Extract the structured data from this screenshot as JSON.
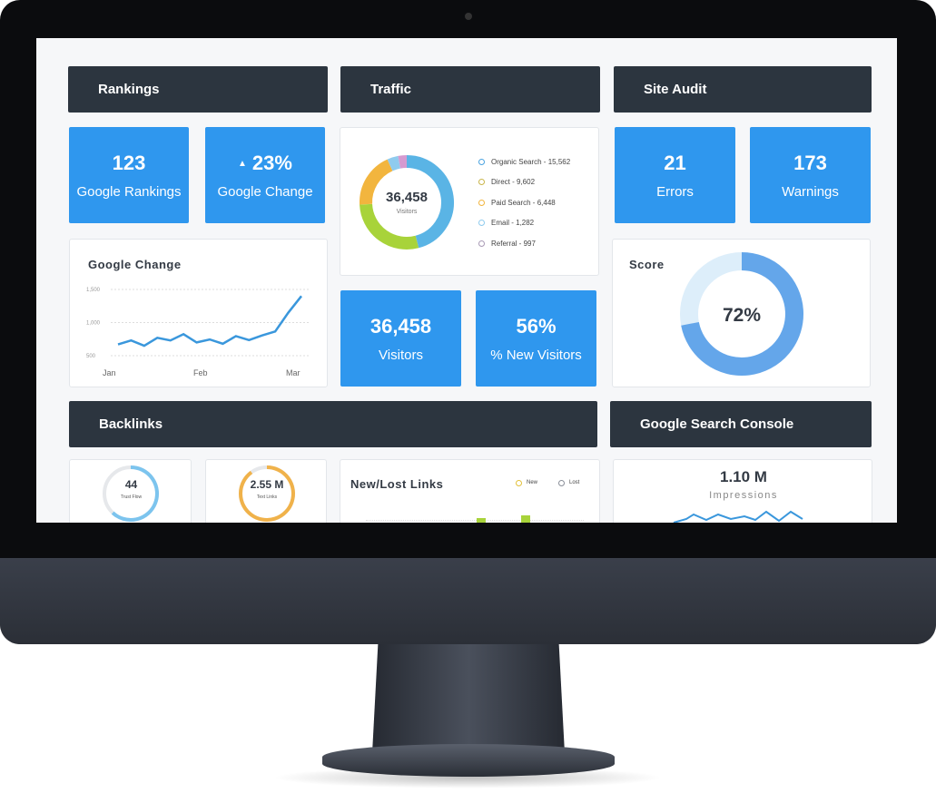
{
  "rankings": {
    "header": "Rankings",
    "tiles": [
      {
        "value": "123",
        "label": "Google Rankings"
      },
      {
        "value": "23%",
        "label": "Google Change",
        "icon": "triangle-up-icon"
      }
    ],
    "chart": {
      "title": "Google Change",
      "chart_data": {
        "type": "line",
        "yticks": [
          "1,500",
          "1,000",
          "500"
        ],
        "ylim": [
          500,
          1500
        ],
        "xticks": [
          "Jan",
          "Feb",
          "Mar"
        ],
        "values": [
          670,
          730,
          650,
          770,
          730,
          825,
          700,
          745,
          680,
          795,
          735,
          805,
          865,
          1150,
          1400
        ],
        "color": "#3a97dc"
      }
    }
  },
  "traffic": {
    "header": "Traffic",
    "donut": {
      "total": "36,458",
      "label": "Visitors",
      "segments": [
        {
          "name": "Organic Search - 15,562",
          "value": 15562,
          "color": "#5ab4e5"
        },
        {
          "name": "Direct - 9,602",
          "value": 9602,
          "color": "#a8d33a"
        },
        {
          "name": "Paid Search - 6,448",
          "value": 6448,
          "color": "#f2b53e"
        },
        {
          "name": "Email - 1,282",
          "value": 1282,
          "color": "#8fcbee"
        },
        {
          "name": "Referral - 997",
          "value": 997,
          "color": "#d59ad0"
        }
      ],
      "legend_colors": [
        "#4aa3e0",
        "#c9b54a",
        "#f2b53e",
        "#8fcbee",
        "#a89ab5"
      ]
    },
    "tiles": [
      {
        "value": "36,458",
        "label": "Visitors"
      },
      {
        "value": "56%",
        "label": "% New Visitors"
      }
    ]
  },
  "site_audit": {
    "header": "Site Audit",
    "tiles": [
      {
        "value": "21",
        "label": "Errors"
      },
      {
        "value": "173",
        "label": "Warnings"
      }
    ],
    "score": {
      "title": "Score",
      "value": "72%",
      "percent": 72,
      "color": "#64a6ea",
      "track": "#ddeefa"
    }
  },
  "backlinks": {
    "header": "Backlinks",
    "trust": {
      "value": "44",
      "label": "Trust Flow",
      "percent": 62,
      "color": "#7cc4ee"
    },
    "text_links": {
      "value": "2.55 M",
      "label": "Text Links",
      "percent": 90,
      "color": "#f0b24a"
    },
    "new_lost": {
      "title": "New/Lost Links",
      "legend": [
        {
          "label": "New",
          "color": "#e3c13a"
        },
        {
          "label": "Lost",
          "color": "#8a8f99"
        }
      ]
    }
  },
  "gsc": {
    "header": "Google Search Console",
    "value": "1.10 M",
    "label": "Impressions"
  }
}
